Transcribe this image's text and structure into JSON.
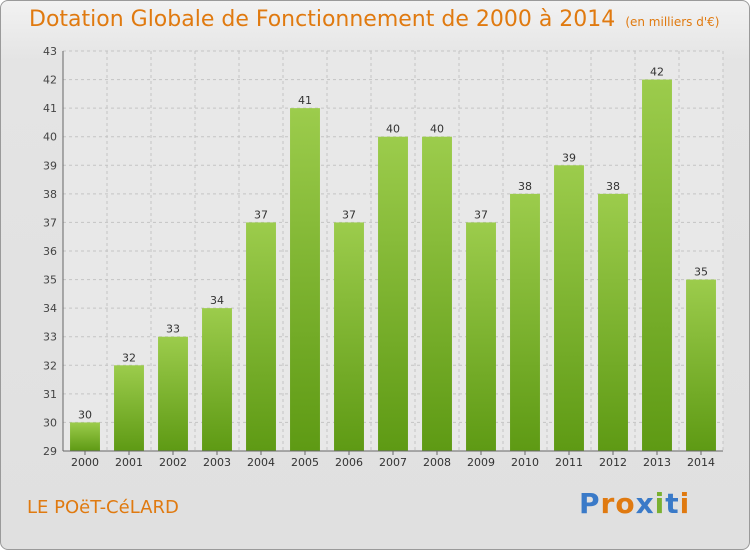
{
  "title": "Dotation Globale de Fonctionnement de 2000 à 2014",
  "subtitle": "(en milliers d'€)",
  "commune": "LE POëT-CéLARD",
  "logo": {
    "text": "Proxiti",
    "colors": [
      "#3a7ac8",
      "#e07a10",
      "#e07a10",
      "#3a7ac8",
      "#7ab030",
      "#3a7ac8",
      "#e07a10"
    ]
  },
  "chart_data": {
    "type": "bar",
    "categories": [
      "2000",
      "2001",
      "2002",
      "2003",
      "2004",
      "2005",
      "2006",
      "2007",
      "2008",
      "2009",
      "2010",
      "2011",
      "2012",
      "2013",
      "2014"
    ],
    "values": [
      30,
      32,
      33,
      34,
      37,
      41,
      37,
      40,
      40,
      37,
      38,
      39,
      38,
      42,
      35
    ],
    "ylim": [
      29,
      43
    ],
    "yticks": [
      29,
      30,
      31,
      32,
      33,
      34,
      35,
      36,
      37,
      38,
      39,
      40,
      41,
      42,
      43
    ],
    "grid": true,
    "bar_color_top": "#9ccc4c",
    "bar_color_bottom": "#5e9a14"
  }
}
